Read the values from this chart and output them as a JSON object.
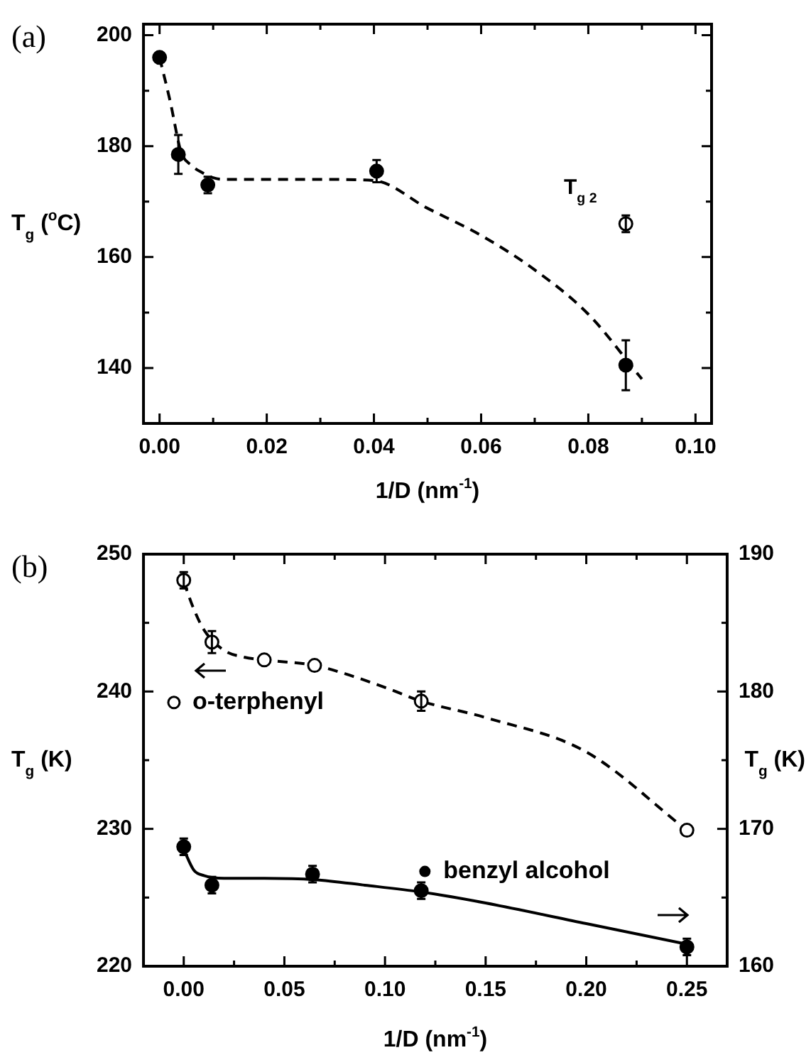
{
  "chart_data": [
    {
      "type": "scatter",
      "title": "(a)",
      "xlabel": "1/D (nm$^{-1}$)",
      "ylabel": "T$_{g}$ ($^{o}$C)",
      "xlim": [
        -0.003,
        0.103
      ],
      "xticks": [
        {
          "value": 0,
          "label": "0.00"
        },
        {
          "value": 0.01,
          "label": null
        },
        {
          "value": 0.02,
          "label": "0.02"
        },
        {
          "value": 0.03,
          "label": null
        },
        {
          "value": 0.04,
          "label": "0.04"
        },
        {
          "value": 0.05,
          "label": null
        },
        {
          "value": 0.06,
          "label": "0.06"
        },
        {
          "value": 0.07,
          "label": null
        },
        {
          "value": 0.08,
          "label": "0.08"
        },
        {
          "value": 0.09,
          "label": null
        },
        {
          "value": 0.1,
          "label": "0.10"
        }
      ],
      "ylim": [
        130,
        202
      ],
      "yticks": [
        140,
        {
          "value": 150,
          "label": null
        },
        160,
        {
          "value": 170,
          "label": null
        },
        180,
        {
          "value": 190,
          "label": null
        },
        200
      ],
      "annotations": [
        "T$_{g 2}$"
      ],
      "series": [
        {
          "marker": "circle",
          "color": "#000000",
          "x": [
            0,
            0.0035,
            0.009,
            0.0405,
            0.087
          ],
          "values": [
            196,
            178.5,
            173,
            175.5,
            140.5
          ],
          "errors": [
            null,
            3.5,
            1.5,
            2,
            4.5
          ]
        },
        {
          "marker": "circle-open",
          "color": "#000000",
          "x": [
            0.087
          ],
          "values": [
            166
          ],
          "errors": [
            1.5
          ]
        },
        {
          "type": "line",
          "marker": "none",
          "line_style": "dashed",
          "color": "#000000",
          "x": [
            0,
            0.002,
            0.004,
            0.006,
            0.008,
            0.01,
            0.012,
            0.02,
            0.03,
            0.04,
            0.05,
            0.06,
            0.07,
            0.08,
            0.09
          ],
          "values": [
            196,
            188,
            179,
            176.5,
            175.2,
            174.3,
            174,
            174,
            174,
            173.8,
            168.8,
            163.9,
            157.7,
            149.7,
            138
          ]
        }
      ]
    },
    {
      "type": "scatter",
      "title": "(b)",
      "xlabel": "1/D (nm$^{-1}$)",
      "ylabel": "T$_{g}$ (K)",
      "y2label": "T$_{g}$ (K)",
      "legend": "left",
      "xlim": [
        -0.02,
        0.27
      ],
      "xticks": [
        {
          "value": 0,
          "label": "0.00"
        },
        {
          "value": 0.025,
          "label": null
        },
        {
          "value": 0.05,
          "label": "0.05"
        },
        {
          "value": 0.075,
          "label": null
        },
        {
          "value": 0.1,
          "label": "0.10"
        },
        {
          "value": 0.125,
          "label": null
        },
        {
          "value": 0.15,
          "label": "0.15"
        },
        {
          "value": 0.175,
          "label": null
        },
        {
          "value": 0.2,
          "label": "0.20"
        },
        {
          "value": 0.225,
          "label": null
        },
        {
          "value": 0.25,
          "label": "0.25"
        }
      ],
      "ylim": [
        220,
        250
      ],
      "yticks": [
        220,
        {
          "value": 225,
          "label": null
        },
        230,
        {
          "value": 235,
          "label": null
        },
        240,
        {
          "value": 245,
          "label": null
        },
        250
      ],
      "y2lim": [
        160,
        190
      ],
      "y2ticks": [
        160,
        {
          "value": 165,
          "label": null
        },
        170,
        {
          "value": 175,
          "label": null
        },
        180,
        {
          "value": 185,
          "label": null
        },
        190
      ],
      "series": [
        {
          "name": "o-terphenyl",
          "marker": "circle-open",
          "color": "#000000",
          "x": [
            0,
            0.014,
            0.04,
            0.065,
            0.118,
            0.25
          ],
          "values": [
            248.1,
            243.6,
            242.3,
            241.9,
            239.3,
            229.9
          ],
          "errors": [
            0.6,
            0.8,
            null,
            null,
            0.7,
            null
          ]
        },
        {
          "type": "line",
          "marker": "none",
          "line_style": "dashed",
          "color": "#000000",
          "x": [
            0,
            0.005,
            0.01,
            0.02,
            0.03,
            0.04,
            0.065,
            0.08,
            0.1,
            0.118,
            0.15,
            0.2,
            0.25
          ],
          "values": [
            248,
            246,
            244.5,
            243,
            242.5,
            242.3,
            241.9,
            241.3,
            240.3,
            239.3,
            238.1,
            235.6,
            229.9
          ]
        },
        {
          "name": "benzyl alcohol",
          "axis": "y2",
          "marker": "circle",
          "color": "#000000",
          "x": [
            0,
            0.014,
            0.064,
            0.118,
            0.25
          ],
          "values": [
            168.7,
            165.9,
            166.7,
            165.5,
            161.4
          ],
          "errors": [
            0.6,
            0.6,
            0.6,
            0.6,
            0.6
          ]
        },
        {
          "type": "line",
          "axis": "y2",
          "marker": "none",
          "line_style": "solid",
          "color": "#000000",
          "x": [
            0,
            0.005,
            0.01,
            0.02,
            0.04,
            0.065,
            0.09,
            0.118,
            0.15,
            0.2,
            0.25
          ],
          "values": [
            168.5,
            167,
            166.6,
            166.4,
            166.4,
            166.3,
            165.9,
            165.4,
            164.6,
            163.1,
            161.6
          ]
        }
      ]
    }
  ]
}
